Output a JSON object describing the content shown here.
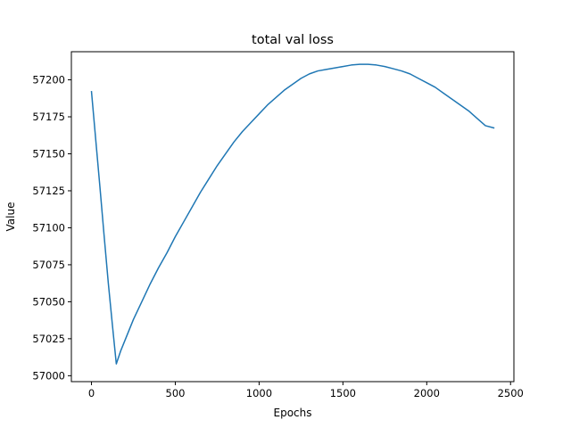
{
  "chart_data": {
    "type": "line",
    "title": "total val loss",
    "xlabel": "Epochs",
    "ylabel": "Value",
    "xlim": [
      -120,
      2520
    ],
    "ylim": [
      56996,
      57219
    ],
    "xticks": [
      0,
      500,
      1000,
      1500,
      2000,
      2500
    ],
    "yticks": [
      57000,
      57025,
      57050,
      57075,
      57100,
      57125,
      57150,
      57175,
      57200
    ],
    "grid": false,
    "legend": "none",
    "line_color": "#1f77b4",
    "series": [
      {
        "x": [
          0,
          25,
          50,
          75,
          100,
          125,
          148,
          175,
          200,
          250,
          300,
          350,
          400,
          450,
          500,
          550,
          600,
          650,
          700,
          750,
          800,
          850,
          900,
          950,
          1000,
          1050,
          1100,
          1150,
          1200,
          1250,
          1300,
          1350,
          1400,
          1450,
          1500,
          1550,
          1600,
          1650,
          1700,
          1750,
          1800,
          1850,
          1900,
          1950,
          2000,
          2050,
          2100,
          2150,
          2200,
          2250,
          2300,
          2350,
          2400
        ],
        "y": [
          57192,
          57160,
          57128,
          57095,
          57063,
          57034,
          57008,
          57017,
          57024,
          57038,
          57050,
          57062,
          57073,
          57083,
          57094,
          57104,
          57114,
          57124,
          57133,
          57142,
          57150,
          57158,
          57165,
          57171,
          57177,
          57183,
          57188,
          57193,
          57197,
          57201,
          57204,
          57206,
          57207,
          57208,
          57209,
          57210,
          57210.5,
          57210.5,
          57210,
          57209,
          57207.5,
          57206,
          57204,
          57201,
          57198,
          57195,
          57191,
          57187,
          57183,
          57179,
          57174,
          57169,
          57167.5
        ]
      }
    ]
  }
}
